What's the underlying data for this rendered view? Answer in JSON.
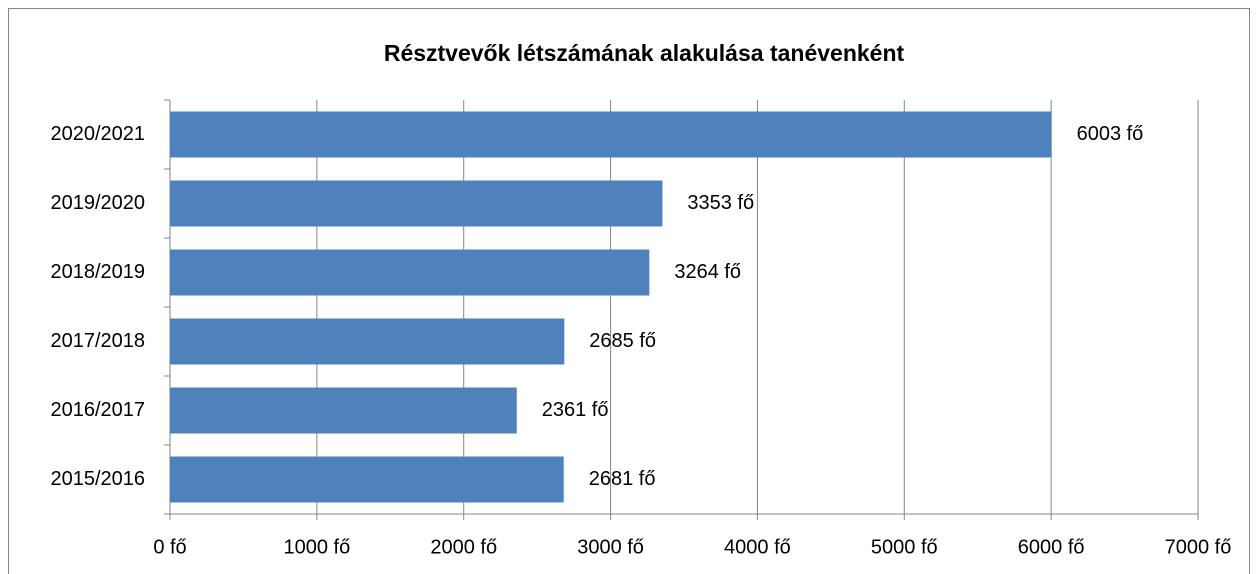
{
  "chart_data": {
    "type": "hbar",
    "title": "Résztvevők létszámának alakulása tanévenként",
    "categories": [
      "2020/2021",
      "2019/2020",
      "2018/2019",
      "2017/2018",
      "2016/2017",
      "2015/2016"
    ],
    "values": [
      6003,
      3353,
      3264,
      2685,
      2361,
      2681
    ],
    "value_labels": [
      "6003 fő",
      "3353 fő",
      "3264 fő",
      "2685 fő",
      "2361 fő",
      "2681 fő"
    ],
    "color": "#4f81bd",
    "xlim": [
      0,
      7000
    ],
    "xticks": [
      {
        "value": 0,
        "label": "0 fő"
      },
      {
        "value": 1000,
        "label": "1000 fő"
      },
      {
        "value": 2000,
        "label": "2000 fő"
      },
      {
        "value": 3000,
        "label": "3000 fő"
      },
      {
        "value": 4000,
        "label": "4000 fő"
      },
      {
        "value": 5000,
        "label": "5000 fő"
      },
      {
        "value": 6000,
        "label": "6000 fő"
      },
      {
        "value": 7000,
        "label": "7000 fő"
      }
    ],
    "grid": true
  }
}
